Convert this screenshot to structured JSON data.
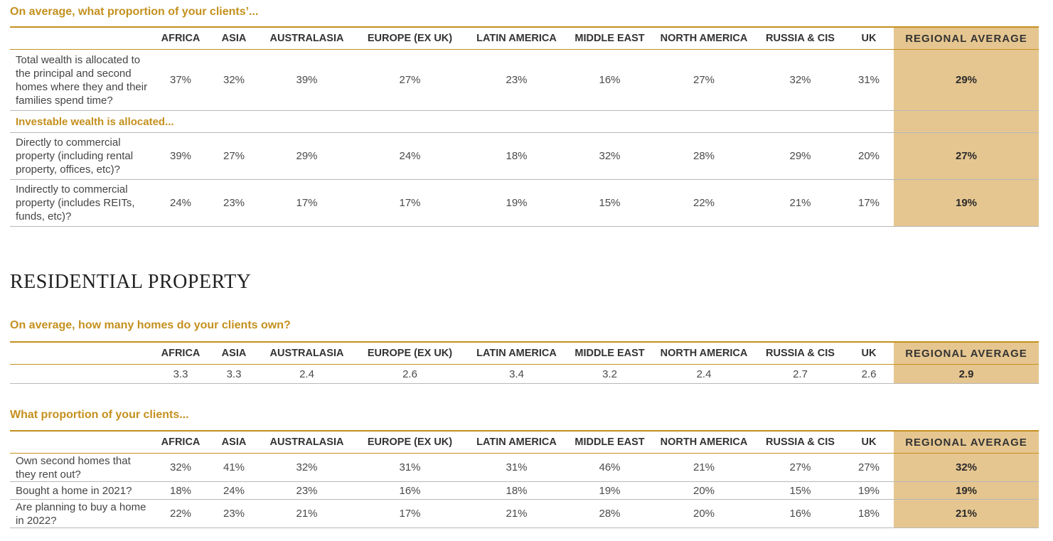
{
  "section1": {
    "question": "On average, what proportion of your clients’...",
    "columns": [
      "AFRICA",
      "ASIA",
      "AUSTRALASIA",
      "EUROPE (EX UK)",
      "LATIN AMERICA",
      "MIDDLE EAST",
      "NORTH AMERICA",
      "RUSSIA & CIS",
      "UK",
      "REGIONAL AVERAGE"
    ],
    "rows": [
      {
        "label": "Total wealth is allocated to the principal and second homes where they and their families spend time?",
        "values": [
          "37%",
          "32%",
          "39%",
          "27%",
          "23%",
          "16%",
          "27%",
          "32%",
          "31%",
          "29%"
        ]
      }
    ],
    "subheading": "Investable wealth is allocated...",
    "rows2": [
      {
        "label": "Directly to commercial property (including rental property, offices, etc)?",
        "values": [
          "39%",
          "27%",
          "29%",
          "24%",
          "18%",
          "32%",
          "28%",
          "29%",
          "20%",
          "27%"
        ]
      },
      {
        "label": "Indirectly to commercial property (includes REITs, funds, etc)?",
        "values": [
          "24%",
          "23%",
          "17%",
          "17%",
          "19%",
          "15%",
          "22%",
          "21%",
          "17%",
          "19%"
        ]
      }
    ]
  },
  "section_title": "RESIDENTIAL PROPERTY",
  "section2": {
    "question": "On average, how many homes do your clients own?",
    "columns": [
      "AFRICA",
      "ASIA",
      "AUSTRALASIA",
      "EUROPE (EX UK)",
      "LATIN AMERICA",
      "MIDDLE EAST",
      "NORTH AMERICA",
      "RUSSIA & CIS",
      "UK",
      "REGIONAL AVERAGE"
    ],
    "values": [
      "3.3",
      "3.3",
      "2.4",
      "2.6",
      "3.4",
      "3.2",
      "2.4",
      "2.7",
      "2.6",
      "2.9"
    ]
  },
  "section3": {
    "question": "What proportion of your clients...",
    "columns": [
      "AFRICA",
      "ASIA",
      "AUSTRALASIA",
      "EUROPE (EX UK)",
      "LATIN AMERICA",
      "MIDDLE EAST",
      "NORTH AMERICA",
      "RUSSIA & CIS",
      "UK",
      "REGIONAL AVERAGE"
    ],
    "rows": [
      {
        "label": "Own second homes that they rent out?",
        "values": [
          "32%",
          "41%",
          "32%",
          "31%",
          "31%",
          "46%",
          "21%",
          "27%",
          "27%",
          "32%"
        ]
      },
      {
        "label": "Bought a home in 2021?",
        "values": [
          "18%",
          "24%",
          "23%",
          "16%",
          "18%",
          "19%",
          "20%",
          "15%",
          "19%",
          "19%"
        ]
      },
      {
        "label": "Are planning to buy a home in 2022?",
        "values": [
          "22%",
          "23%",
          "21%",
          "17%",
          "21%",
          "28%",
          "20%",
          "16%",
          "18%",
          "21%"
        ]
      }
    ]
  }
}
